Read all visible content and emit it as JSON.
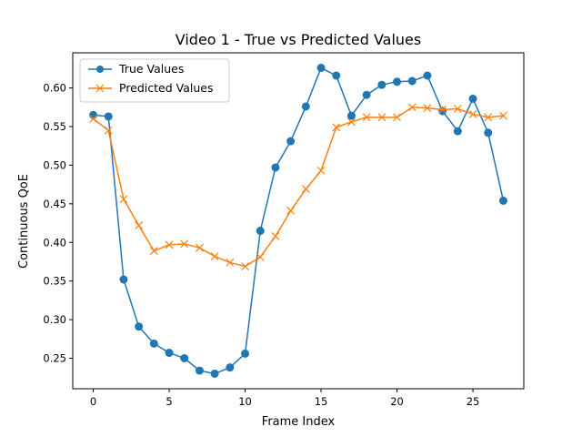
{
  "chart_data": {
    "type": "line",
    "title": "Video 1 - True vs Predicted Values",
    "xlabel": "Frame Index",
    "ylabel": "Continuous QoE",
    "xlim": [
      -1.35,
      28.35
    ],
    "ylim": [
      0.2105,
      0.6455
    ],
    "xticks": [
      0,
      5,
      10,
      15,
      20,
      25
    ],
    "xtick_labels": [
      "0",
      "5",
      "10",
      "15",
      "20",
      "25"
    ],
    "yticks": [
      0.25,
      0.3,
      0.35,
      0.4,
      0.45,
      0.5,
      0.55,
      0.6
    ],
    "ytick_labels": [
      "0.25",
      "0.30",
      "0.35",
      "0.40",
      "0.45",
      "0.50",
      "0.55",
      "0.60"
    ],
    "grid": false,
    "legend_position": "upper-left",
    "x": [
      0,
      1,
      2,
      3,
      4,
      5,
      6,
      7,
      8,
      9,
      10,
      11,
      12,
      13,
      14,
      15,
      16,
      17,
      18,
      19,
      20,
      21,
      22,
      23,
      24,
      25,
      26,
      27
    ],
    "series": [
      {
        "name": "True Values",
        "color": "#1f77b4",
        "marker": "circle",
        "values": [
          0.565,
          0.563,
          0.352,
          0.291,
          0.269,
          0.257,
          0.25,
          0.234,
          0.23,
          0.238,
          0.256,
          0.415,
          0.497,
          0.531,
          0.576,
          0.626,
          0.616,
          0.564,
          0.591,
          0.604,
          0.608,
          0.609,
          0.616,
          0.57,
          0.544,
          0.586,
          0.542,
          0.454
        ]
      },
      {
        "name": "Predicted Values",
        "color": "#ff7f0e",
        "marker": "x",
        "values": [
          0.56,
          0.545,
          0.456,
          0.422,
          0.389,
          0.397,
          0.398,
          0.393,
          0.382,
          0.374,
          0.369,
          0.381,
          0.408,
          0.441,
          0.469,
          0.493,
          0.549,
          0.556,
          0.562,
          0.562,
          0.562,
          0.575,
          0.574,
          0.572,
          0.573,
          0.566,
          0.562,
          0.564
        ]
      }
    ]
  }
}
